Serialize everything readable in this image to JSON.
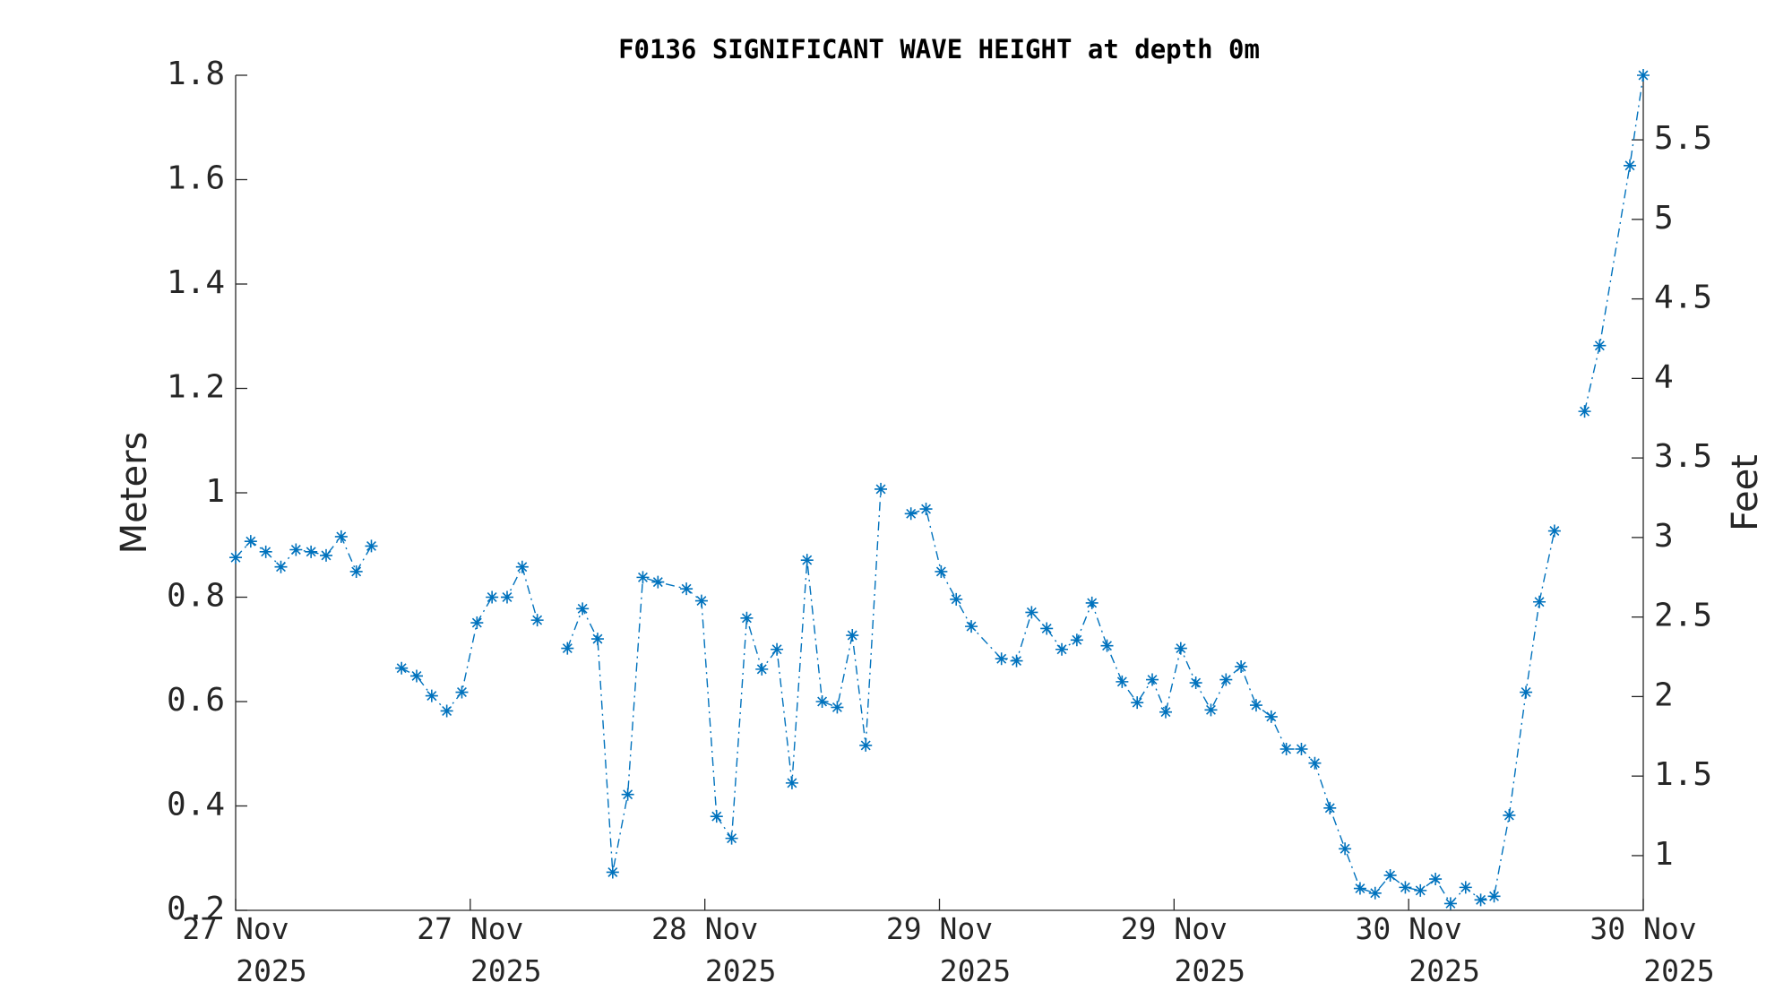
{
  "chart_data": {
    "type": "line",
    "title": "F0136 SIGNIFICANT WAVE HEIGHT at depth 0m",
    "y_label": "Meters",
    "y2_label": "Feet",
    "color": "#0072bd",
    "x": [
      0,
      0.9,
      1.8,
      2.7,
      3.6,
      4.5,
      5.4,
      6.3,
      7.2,
      8.1,
      9.0,
      9.9,
      10.8,
      11.7,
      12.6,
      13.5,
      14.4,
      15.3,
      16.2,
      17.1,
      18.0,
      18.9,
      19.8,
      20.7,
      21.6,
      22.5,
      23.4,
      24.3,
      25.2,
      26.9,
      27.8,
      28.7,
      29.6,
      30.5,
      31.4,
      32.3,
      33.2,
      34.1,
      35.0,
      35.9,
      36.8,
      37.6,
      38.5,
      39.4,
      40.3,
      41.2,
      42.1,
      43.0,
      43.9,
      45.7,
      46.6,
      47.5,
      48.4,
      49.3,
      50.2,
      51.1,
      52.0,
      52.9,
      53.8,
      54.7,
      55.5,
      56.4,
      57.3,
      58.2,
      59.1,
      60.0,
      60.9,
      61.8,
      62.7,
      63.6,
      64.4,
      65.3,
      66.2,
      67.1,
      68.0,
      68.9,
      69.8,
      70.7,
      71.6,
      72.5,
      73.4,
      74.3,
      75.1,
      76.0,
      77.0,
      77.8,
      78.7,
      79.6,
      80.5,
      81.4,
      83.2,
      84.0
    ],
    "values": [
      0.876,
      0.907,
      0.887,
      0.858,
      0.891,
      0.887,
      0.88,
      0.916,
      0.849,
      0.898,
      null,
      0.664,
      0.649,
      0.611,
      0.582,
      0.618,
      0.751,
      0.8,
      0.8,
      0.858,
      0.756,
      null,
      0.702,
      0.778,
      0.72,
      0.273,
      0.422,
      0.838,
      0.829,
      0.816,
      0.793,
      0.38,
      0.338,
      0.76,
      0.662,
      0.7,
      0.444,
      0.871,
      0.6,
      0.589,
      0.727,
      0.516,
      1.007,
      null,
      0.96,
      0.969,
      0.849,
      0.796,
      0.744,
      0.682,
      0.678,
      0.771,
      0.74,
      0.7,
      0.718,
      0.789,
      0.707,
      0.638,
      0.598,
      0.642,
      0.58,
      0.702,
      0.636,
      0.584,
      0.642,
      0.667,
      0.593,
      0.571,
      0.509,
      0.509,
      0.482,
      0.396,
      0.318,
      0.242,
      0.233,
      0.267,
      0.244,
      0.238,
      0.26,
      0.213,
      0.244,
      0.22,
      0.227,
      0.382,
      0.618,
      0.791,
      0.927,
      null,
      1.156,
      1.282,
      1.627,
      1.8
    ],
    "xlim": [
      0,
      84
    ],
    "xticks": [
      {
        "value": 0,
        "label": "27 Nov 2025"
      },
      {
        "value": 14,
        "label": "27 Nov 2025"
      },
      {
        "value": 28,
        "label": "28 Nov 2025"
      },
      {
        "value": 42,
        "label": "29 Nov 2025"
      },
      {
        "value": 56,
        "label": "29 Nov 2025"
      },
      {
        "value": 70,
        "label": "30 Nov 2025"
      },
      {
        "value": 84,
        "label": "30 Nov 2025"
      }
    ],
    "ylim": [
      0.2,
      1.8
    ],
    "yticks": [
      0.2,
      0.4,
      0.6,
      0.8,
      1,
      1.2,
      1.4,
      1.6,
      1.8
    ],
    "y2lim": [
      0.656,
      5.906
    ],
    "y2ticks": [
      1,
      1.5,
      2,
      2.5,
      3,
      3.5,
      4,
      4.5,
      5,
      5.5
    ],
    "grid": false
  }
}
